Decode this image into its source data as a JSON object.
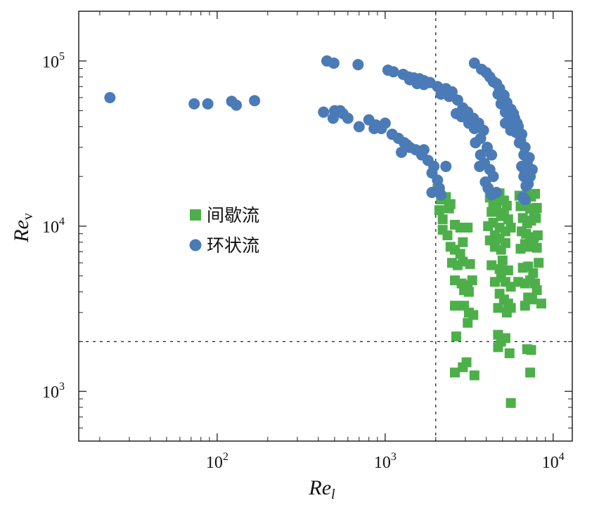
{
  "chart_data": {
    "type": "scatter",
    "x_scale": "log",
    "y_scale": "log",
    "xlim": [
      15,
      13000
    ],
    "ylim": [
      500,
      200000
    ],
    "xlabel": "Re",
    "xlabel_sub": "l",
    "ylabel": "Re",
    "ylabel_sub": "v",
    "x_ticks": [
      {
        "value": 100,
        "base": "10",
        "exp": "2"
      },
      {
        "value": 1000,
        "base": "10",
        "exp": "3"
      },
      {
        "value": 10000,
        "base": "10",
        "exp": "4"
      }
    ],
    "y_ticks": [
      {
        "value": 1000,
        "base": "10",
        "exp": "3"
      },
      {
        "value": 10000,
        "base": "10",
        "exp": "4"
      },
      {
        "value": 100000,
        "base": "10",
        "exp": "5"
      }
    ],
    "reference_lines": [
      {
        "orientation": "vertical",
        "value": 2000
      },
      {
        "orientation": "horizontal",
        "value": 2000
      }
    ],
    "legend_position": "center-left",
    "series": [
      {
        "name": "间歇流",
        "marker": "square",
        "color": "#4daf4a",
        "points": [
          [
            2050,
            16800
          ],
          [
            2150,
            14500
          ],
          [
            2300,
            15000
          ],
          [
            2100,
            12500
          ],
          [
            2200,
            11000
          ],
          [
            2400,
            12800
          ],
          [
            2450,
            13600
          ],
          [
            2200,
            9500
          ],
          [
            2350,
            8800
          ],
          [
            2450,
            7500
          ],
          [
            2600,
            10200
          ],
          [
            2800,
            9800
          ],
          [
            2900,
            8000
          ],
          [
            3100,
            9800
          ],
          [
            2600,
            7200
          ],
          [
            2800,
            6800
          ],
          [
            2500,
            6000
          ],
          [
            2700,
            5800
          ],
          [
            2900,
            6100
          ],
          [
            3200,
            5900
          ],
          [
            2600,
            4700
          ],
          [
            2850,
            4500
          ],
          [
            3100,
            4400
          ],
          [
            3300,
            4700
          ],
          [
            2950,
            4100
          ],
          [
            3150,
            4000
          ],
          [
            2600,
            3300
          ],
          [
            2950,
            3300
          ],
          [
            3150,
            3000
          ],
          [
            3350,
            2900
          ],
          [
            3100,
            2600
          ],
          [
            2650,
            2150
          ],
          [
            3050,
            1500
          ],
          [
            2900,
            1400
          ],
          [
            2600,
            1300
          ],
          [
            3400,
            1250
          ],
          [
            4200,
            14900
          ],
          [
            4400,
            13500
          ],
          [
            4600,
            14200
          ],
          [
            4800,
            15800
          ],
          [
            5100,
            14300
          ],
          [
            5300,
            13300
          ],
          [
            4300,
            12200
          ],
          [
            4600,
            12800
          ],
          [
            4900,
            11500
          ],
          [
            5100,
            12000
          ],
          [
            5400,
            11000
          ],
          [
            4100,
            10000
          ],
          [
            4400,
            10500
          ],
          [
            4800,
            9800
          ],
          [
            5200,
            9300
          ],
          [
            5600,
            9800
          ],
          [
            4200,
            8200
          ],
          [
            4500,
            8800
          ],
          [
            4800,
            8400
          ],
          [
            5200,
            7900
          ],
          [
            4500,
            7500
          ],
          [
            4900,
            7200
          ],
          [
            4300,
            5800
          ],
          [
            4800,
            5500
          ],
          [
            5000,
            6200
          ],
          [
            5400,
            5400
          ],
          [
            4500,
            4600
          ],
          [
            4900,
            4900
          ],
          [
            5200,
            4600
          ],
          [
            5600,
            4300
          ],
          [
            4800,
            3900
          ],
          [
            5100,
            3600
          ],
          [
            5400,
            3400
          ],
          [
            4700,
            3200
          ],
          [
            5300,
            3000
          ],
          [
            5600,
            3200
          ],
          [
            4700,
            2200
          ],
          [
            4900,
            2000
          ],
          [
            5200,
            2100
          ],
          [
            4700,
            1850
          ],
          [
            5500,
            1700
          ],
          [
            5600,
            850
          ],
          [
            6300,
            15300
          ],
          [
            6700,
            14800
          ],
          [
            7000,
            15400
          ],
          [
            7400,
            15100
          ],
          [
            7800,
            15700
          ],
          [
            6400,
            13200
          ],
          [
            6900,
            13600
          ],
          [
            7300,
            12800
          ],
          [
            7700,
            12300
          ],
          [
            8000,
            12900
          ],
          [
            6600,
            11200
          ],
          [
            7000,
            10400
          ],
          [
            7400,
            10800
          ],
          [
            7900,
            11200
          ],
          [
            6500,
            9300
          ],
          [
            6900,
            9000
          ],
          [
            7300,
            8400
          ],
          [
            7700,
            8600
          ],
          [
            8100,
            8800
          ],
          [
            6400,
            7300
          ],
          [
            6800,
            7800
          ],
          [
            7200,
            7500
          ],
          [
            7600,
            7700
          ],
          [
            8000,
            7400
          ],
          [
            6600,
            5600
          ],
          [
            7100,
            5700
          ],
          [
            7600,
            5200
          ],
          [
            8200,
            6000
          ],
          [
            6200,
            4600
          ],
          [
            6800,
            4500
          ],
          [
            7300,
            4700
          ],
          [
            7800,
            4500
          ],
          [
            7100,
            3700
          ],
          [
            7500,
            3600
          ],
          [
            8000,
            4100
          ],
          [
            6800,
            3300
          ],
          [
            8500,
            3400
          ],
          [
            7000,
            1800
          ],
          [
            7400,
            1780
          ],
          [
            7300,
            1300
          ]
        ]
      },
      {
        "name": "环状流",
        "marker": "circle",
        "color": "#4a7bb7",
        "points": [
          [
            23,
            60000
          ],
          [
            73,
            55000
          ],
          [
            88,
            55000
          ],
          [
            122,
            57000
          ],
          [
            130,
            54000
          ],
          [
            167,
            57500
          ],
          [
            450,
            100000
          ],
          [
            495,
            97000
          ],
          [
            690,
            95000
          ],
          [
            430,
            49000
          ],
          [
            500,
            50000
          ],
          [
            540,
            50000
          ],
          [
            560,
            48000
          ],
          [
            600,
            45000
          ],
          [
            490,
            45000
          ],
          [
            1040,
            88000
          ],
          [
            1120,
            86000
          ],
          [
            1280,
            83000
          ],
          [
            1380,
            80000
          ],
          [
            1480,
            79000
          ],
          [
            1600,
            78000
          ],
          [
            1700,
            76000
          ],
          [
            1850,
            74000
          ],
          [
            2050,
            70000
          ],
          [
            2300,
            68000
          ],
          [
            2500,
            65000
          ],
          [
            1400,
            77000
          ],
          [
            1550,
            73000
          ],
          [
            1700,
            72000
          ],
          [
            2150,
            63000
          ],
          [
            2400,
            61000
          ],
          [
            2700,
            58000
          ],
          [
            2900,
            52000
          ],
          [
            3100,
            49000
          ],
          [
            3350,
            45000
          ],
          [
            3600,
            42000
          ],
          [
            3850,
            38000
          ],
          [
            2650,
            48000
          ],
          [
            2850,
            46000
          ],
          [
            3150,
            42000
          ],
          [
            3400,
            39000
          ],
          [
            3700,
            34000
          ],
          [
            4050,
            30000
          ],
          [
            4300,
            27000
          ],
          [
            3450,
            32000
          ],
          [
            3700,
            27000
          ],
          [
            3900,
            24000
          ],
          [
            4200,
            22000
          ],
          [
            4400,
            20000
          ],
          [
            3950,
            18500
          ],
          [
            4100,
            17000
          ],
          [
            4300,
            15500
          ],
          [
            4600,
            16000
          ],
          [
            3650,
            23000
          ],
          [
            800,
            44000
          ],
          [
            880,
            41000
          ],
          [
            950,
            39000
          ],
          [
            1000,
            42000
          ],
          [
            1100,
            36000
          ],
          [
            1200,
            34000
          ],
          [
            1300,
            32000
          ],
          [
            1400,
            30000
          ],
          [
            1520,
            29000
          ],
          [
            1650,
            27000
          ],
          [
            1800,
            25000
          ],
          [
            1950,
            23000
          ],
          [
            1250,
            28000
          ],
          [
            1350,
            31000
          ],
          [
            1700,
            29000
          ],
          [
            1900,
            21000
          ],
          [
            2050,
            19000
          ],
          [
            2100,
            17000
          ],
          [
            1900,
            16000
          ],
          [
            2150,
            15500
          ],
          [
            2300,
            23000
          ],
          [
            700,
            40000
          ],
          [
            860,
            39000
          ],
          [
            3400,
            97000
          ],
          [
            3750,
            89000
          ],
          [
            4000,
            85000
          ],
          [
            4200,
            80000
          ],
          [
            4400,
            75000
          ],
          [
            4600,
            73000
          ],
          [
            4800,
            68000
          ],
          [
            5100,
            62000
          ],
          [
            5300,
            56000
          ],
          [
            5600,
            51000
          ],
          [
            5900,
            45000
          ],
          [
            6200,
            40000
          ],
          [
            6500,
            36000
          ],
          [
            6800,
            30000
          ],
          [
            7200,
            26000
          ],
          [
            7500,
            22000
          ],
          [
            4700,
            63000
          ],
          [
            5000,
            58000
          ],
          [
            5400,
            52000
          ],
          [
            5800,
            48000
          ],
          [
            6100,
            42000
          ],
          [
            6400,
            33000
          ],
          [
            6700,
            27000
          ],
          [
            7000,
            24000
          ],
          [
            4900,
            55000
          ],
          [
            5200,
            49000
          ],
          [
            5500,
            46000
          ],
          [
            5800,
            43000
          ],
          [
            6000,
            37000
          ],
          [
            7300,
            20000
          ],
          [
            6700,
            20000
          ],
          [
            6900,
            17500
          ],
          [
            7100,
            18000
          ],
          [
            6600,
            15000
          ],
          [
            6800,
            14500
          ],
          [
            5200,
            42000
          ],
          [
            5600,
            38000
          ],
          [
            6300,
            32000
          ],
          [
            6500,
            23000
          ],
          [
            6800,
            21500
          ]
        ]
      }
    ]
  }
}
